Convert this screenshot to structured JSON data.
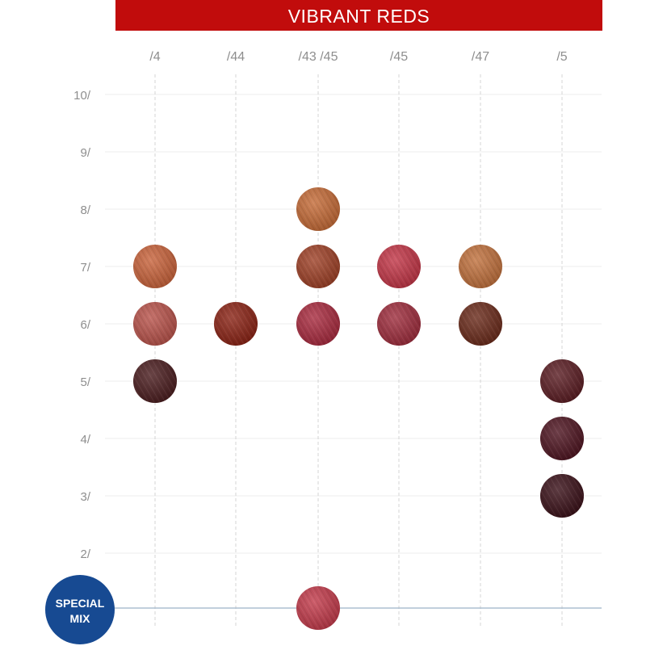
{
  "banner": {
    "title": "VIBRANT REDS",
    "color": "#c10c0c"
  },
  "special_badge": {
    "line1": "SPECIAL",
    "line2": "MIX",
    "color": "#174a92"
  },
  "chart_data": {
    "type": "scatter",
    "title": "VIBRANT REDS",
    "columns": [
      "/4",
      "/44",
      "/43 /45",
      "/45",
      "/47",
      "/5"
    ],
    "rows": [
      "10/",
      "9/",
      "8/",
      "7/",
      "6/",
      "5/",
      "4/",
      "3/",
      "2/"
    ],
    "points": [
      {
        "col": "/4",
        "level": 7,
        "color": "#c8623a"
      },
      {
        "col": "/4",
        "level": 6,
        "color": "#b8524a"
      },
      {
        "col": "/4",
        "level": 5,
        "color": "#4a1c1e"
      },
      {
        "col": "/44",
        "level": 6,
        "color": "#8a2214"
      },
      {
        "col": "/43 /45",
        "level": 8,
        "color": "#c46a36"
      },
      {
        "col": "/43 /45",
        "level": 7,
        "color": "#9e4026"
      },
      {
        "col": "/43 /45",
        "level": 6,
        "color": "#a82a3e"
      },
      {
        "col": "/45",
        "level": 7,
        "color": "#c23546"
      },
      {
        "col": "/45",
        "level": 6,
        "color": "#9e2c3c"
      },
      {
        "col": "/47",
        "level": 7,
        "color": "#c0703c"
      },
      {
        "col": "/47",
        "level": 6,
        "color": "#6a2a1a"
      },
      {
        "col": "/5",
        "level": 5,
        "color": "#5a1c22"
      },
      {
        "col": "/5",
        "level": 4,
        "color": "#4e1420"
      },
      {
        "col": "/5",
        "level": 3,
        "color": "#3a1018"
      },
      {
        "col": "/43 /45",
        "level": "special mix",
        "color": "#c23a4a"
      }
    ]
  }
}
